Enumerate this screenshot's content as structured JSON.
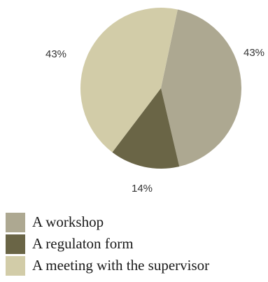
{
  "chart_data": {
    "type": "pie",
    "title": "",
    "slices": [
      {
        "label": "A workshop",
        "value": 43,
        "display": "43%",
        "color": "#ada891"
      },
      {
        "label": "A regulaton form",
        "value": 14,
        "display": "14%",
        "color": "#6a6546"
      },
      {
        "label": "A meeting with the supervisor",
        "value": 43,
        "display": "43%",
        "color": "#d2cca8"
      }
    ],
    "legend_placement": "bottom-left"
  }
}
